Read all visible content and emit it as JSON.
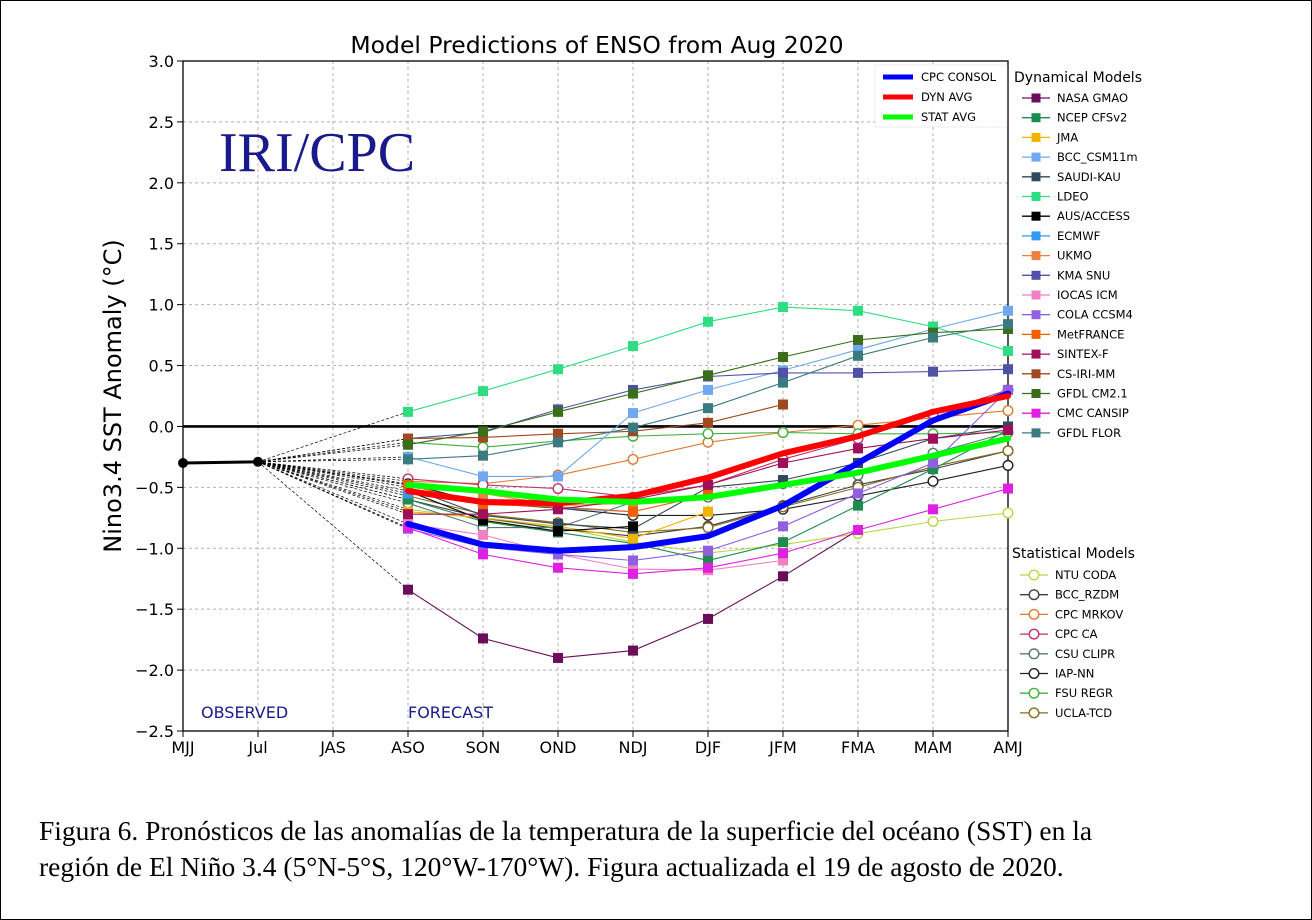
{
  "title": "Model Predictions of ENSO from Aug 2020",
  "watermark": "IRI/CPC",
  "annotations": {
    "observed": "OBSERVED",
    "forecast": "FORECAST"
  },
  "caption": {
    "line1": "Figura 6. Pronósticos de las anomalías de la temperatura de la superficie del océano (SST) en la",
    "line2": "región de El Niño 3.4 (5°N-5°S, 120°W-170°W). Figura actualizada el 19 de agosto de 2020."
  },
  "colors": {
    "consol": "#0000ff",
    "dyn_avg": "#ff0000",
    "stat_avg": "#00ff00",
    "accent_text": "#1a1a8c"
  },
  "chart_data": {
    "type": "line",
    "xlabel": "",
    "ylabel": "Nino3.4 SST Anomaly (°C)",
    "categories": [
      "MJJ",
      "Jul",
      "JAS",
      "ASO",
      "SON",
      "OND",
      "NDJ",
      "DJF",
      "JFM",
      "FMA",
      "MAM",
      "AMJ"
    ],
    "ylim": [
      -2.5,
      3.0
    ],
    "yticks": [
      -2.5,
      -2.0,
      -1.5,
      -1.0,
      -0.5,
      0.0,
      0.5,
      1.0,
      1.5,
      2.0,
      2.5,
      3.0
    ],
    "ytick_labels": [
      "−2.5",
      "−2.0",
      "−1.5",
      "−1.0",
      "−0.5",
      "0.0",
      "0.5",
      "1.0",
      "1.5",
      "2.0",
      "2.5",
      "3.0"
    ],
    "grid": true,
    "observed": {
      "x": [
        0,
        1
      ],
      "values": [
        -0.3,
        -0.29
      ]
    },
    "averages": [
      {
        "name": "CPC CONSOL",
        "color": "#0000ff",
        "values": [
          -0.8,
          -0.97,
          -1.02,
          -0.99,
          -0.9,
          -0.65,
          -0.3,
          0.05,
          0.27
        ]
      },
      {
        "name": "DYN AVG",
        "color": "#ff0000",
        "values": [
          -0.53,
          -0.62,
          -0.63,
          -0.57,
          -0.42,
          -0.22,
          -0.08,
          0.12,
          0.25
        ]
      },
      {
        "name": "STAT AVG",
        "color": "#00ff00",
        "values": [
          -0.48,
          -0.53,
          -0.6,
          -0.62,
          -0.58,
          -0.48,
          -0.38,
          -0.24,
          -0.1
        ]
      }
    ],
    "legend_averages_position": "top-right",
    "legend_dynamical_title": "Dynamical Models",
    "legend_statistical_title": "Statistical Models",
    "dynamical_models": [
      {
        "name": "NASA GMAO",
        "color": "#6a0d5a",
        "values": [
          -1.34,
          -1.74,
          -1.9,
          -1.84,
          -1.58,
          -1.23,
          -0.85,
          null,
          null
        ]
      },
      {
        "name": "NCEP CFSv2",
        "color": "#1e8c4e",
        "values": [
          -0.6,
          -0.78,
          -0.87,
          -0.96,
          -1.1,
          -0.95,
          -0.65,
          -0.35,
          -0.03
        ]
      },
      {
        "name": "JMA",
        "color": "#f0b400",
        "values": [
          -0.7,
          -0.75,
          -0.82,
          -0.92,
          -0.7,
          null,
          null,
          null,
          null
        ]
      },
      {
        "name": "BCC_CSM11m",
        "color": "#6fa8f0",
        "values": [
          -0.25,
          -0.41,
          -0.41,
          0.11,
          0.3,
          0.46,
          0.63,
          0.8,
          0.95
        ]
      },
      {
        "name": "SAUDI-KAU",
        "color": "#2e4a5a",
        "values": [
          -0.5,
          -0.73,
          -0.8,
          -0.84,
          -0.5,
          -0.44,
          -0.3,
          -0.1,
          0.0
        ]
      },
      {
        "name": "LDEO",
        "color": "#2edc82",
        "values": [
          0.12,
          0.29,
          0.47,
          0.66,
          0.86,
          0.98,
          0.95,
          0.82,
          0.62
        ]
      },
      {
        "name": "AUS/ACCESS",
        "color": "#000000",
        "values": [
          -0.53,
          -0.77,
          -0.86,
          -0.82,
          null,
          null,
          null,
          null,
          null
        ]
      },
      {
        "name": "ECMWF",
        "color": "#3399f0",
        "values": [
          -0.55,
          -0.6,
          -0.67,
          -0.7,
          null,
          null,
          null,
          null,
          null
        ]
      },
      {
        "name": "UKMO",
        "color": "#f08040",
        "values": [
          -0.48,
          -0.55,
          -0.65,
          -0.63,
          null,
          null,
          null,
          null,
          null
        ]
      },
      {
        "name": "KMA SNU",
        "color": "#5050a8",
        "values": [
          -0.1,
          -0.05,
          0.14,
          0.3,
          0.41,
          0.44,
          0.44,
          0.45,
          0.47
        ]
      },
      {
        "name": "IOCAS ICM",
        "color": "#f080c0",
        "values": [
          -0.8,
          -0.89,
          -1.05,
          -1.17,
          -1.18,
          -1.1,
          null,
          null,
          null
        ]
      },
      {
        "name": "COLA CCSM4",
        "color": "#9060e0",
        "values": [
          -0.84,
          -0.99,
          -1.05,
          -1.1,
          -1.02,
          -0.82,
          -0.55,
          -0.3,
          0.3
        ]
      },
      {
        "name": "MetFRANCE",
        "color": "#f06000",
        "values": [
          -0.48,
          -0.64,
          -0.66,
          -0.7,
          -0.56,
          null,
          null,
          null,
          null
        ]
      },
      {
        "name": "SINTEX-F",
        "color": "#a0105a",
        "values": [
          -0.72,
          -0.72,
          -0.68,
          -0.6,
          -0.48,
          -0.3,
          -0.18,
          -0.1,
          -0.03
        ]
      },
      {
        "name": "CS-IRI-MM",
        "color": "#a04820",
        "values": [
          -0.1,
          -0.09,
          -0.06,
          -0.04,
          0.03,
          0.18,
          null,
          null,
          null
        ]
      },
      {
        "name": "GFDL CM2.1",
        "color": "#3a6e1a",
        "values": [
          -0.15,
          -0.04,
          0.12,
          0.27,
          0.42,
          0.57,
          0.71,
          0.77,
          0.8
        ]
      },
      {
        "name": "CMC CANSIP",
        "color": "#e020e0",
        "values": [
          -0.83,
          -1.05,
          -1.16,
          -1.21,
          -1.16,
          -1.04,
          -0.85,
          -0.68,
          -0.51
        ]
      },
      {
        "name": "GFDL FLOR",
        "color": "#3a7a80",
        "values": [
          -0.27,
          -0.24,
          -0.13,
          -0.01,
          0.15,
          0.36,
          0.58,
          0.73,
          0.84
        ]
      }
    ],
    "statistical_models": [
      {
        "name": "NTU CODA",
        "color": "#b8d848",
        "values": [
          -0.68,
          -0.76,
          -0.83,
          -0.95,
          -1.04,
          -0.97,
          -0.88,
          -0.78,
          -0.71
        ]
      },
      {
        "name": "BCC_RZDM",
        "color": "#404040",
        "values": [
          -0.6,
          -0.75,
          -0.84,
          -0.9,
          -0.82,
          -0.65,
          -0.48,
          -0.35,
          -0.2
        ]
      },
      {
        "name": "CPC MRKOV",
        "color": "#e07a30",
        "values": [
          -0.45,
          -0.47,
          -0.4,
          -0.27,
          -0.13,
          -0.05,
          0.01,
          0.07,
          0.13
        ]
      },
      {
        "name": "CPC CA",
        "color": "#c0306a",
        "values": [
          -0.43,
          -0.48,
          -0.51,
          -0.58,
          -0.48,
          -0.27,
          -0.1,
          0.1,
          0.3
        ]
      },
      {
        "name": "CSU CLIPR",
        "color": "#587878",
        "values": [
          -0.63,
          -0.83,
          -0.83,
          -0.62,
          -0.58,
          -0.47,
          -0.4,
          -0.22,
          -0.05
        ]
      },
      {
        "name": "IAP-NN",
        "color": "#202020",
        "values": [
          -0.47,
          -0.63,
          -0.67,
          -0.73,
          -0.73,
          -0.68,
          -0.57,
          -0.45,
          -0.32
        ]
      },
      {
        "name": "FSU REGR",
        "color": "#40b040",
        "values": [
          -0.13,
          -0.17,
          -0.12,
          -0.08,
          -0.06,
          -0.05,
          -0.06,
          -0.06,
          -0.05
        ]
      },
      {
        "name": "UCLA-TCD",
        "color": "#8a6a20",
        "values": [
          -0.57,
          -0.72,
          -0.79,
          -0.87,
          -0.83,
          -0.66,
          -0.5,
          -0.33,
          -0.2
        ]
      }
    ]
  }
}
